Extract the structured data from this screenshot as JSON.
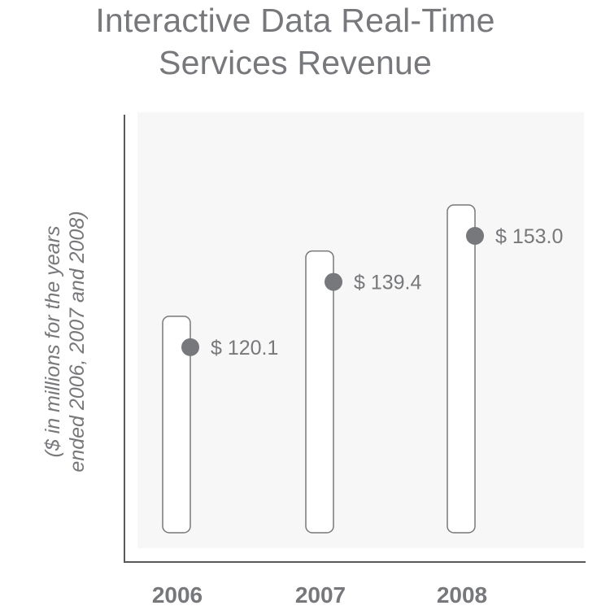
{
  "chart_data": {
    "type": "bar",
    "title_lines": [
      "Interactive Data Real-Time",
      "Services Revenue"
    ],
    "ylabel_lines": [
      "($ in millions for the years",
      "ended 2006, 2007 and 2008)"
    ],
    "xlabel": "",
    "categories": [
      "2006",
      "2007",
      "2008"
    ],
    "values": [
      120.1,
      139.4,
      153.0
    ],
    "data_labels": [
      "$ 120.1",
      "$ 139.4",
      "$ 153.0"
    ],
    "ylim": [
      0,
      160
    ],
    "grid": false,
    "legend": "none",
    "colors": {
      "text": "#77787b",
      "plot_background": "#f6f7f6",
      "bar_outline": "#77787b",
      "marker": "#77787b",
      "axis": "#58595b"
    }
  }
}
